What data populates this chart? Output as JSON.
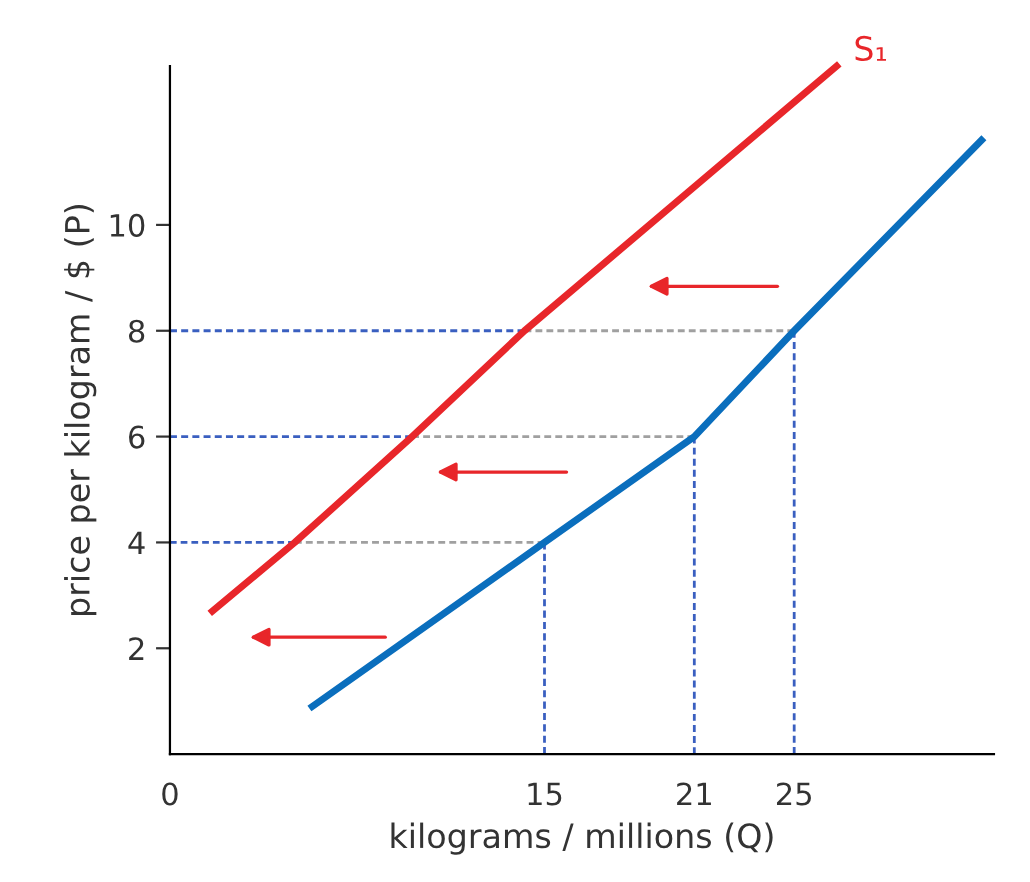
{
  "chart_data": {
    "type": "line",
    "xlabel": "kilograms / millions (Q)",
    "ylabel": "price per kilogram / $ (P)",
    "xlim": [
      0,
      33
    ],
    "ylim": [
      0,
      13
    ],
    "xticks": [
      0,
      15,
      21,
      25
    ],
    "yticks": [
      2,
      4,
      6,
      8,
      10
    ],
    "grid": false,
    "marker": "none",
    "series": [
      {
        "name": "S₁",
        "color": "#e8262a",
        "x": [
          1.7,
          5.0,
          9.7,
          14.2,
          26.7
        ],
        "values": [
          2.7,
          4,
          6,
          8,
          13
        ]
      },
      {
        "color": "#0a6ebd",
        "x": [
          5.7,
          15,
          21,
          25,
          32.5
        ],
        "values": [
          0.9,
          4,
          6,
          8,
          11.6
        ]
      },
      {
        "color": "#3a5fc0",
        "line_style": "dashed",
        "x": [
          0,
          5.0
        ],
        "values": [
          4,
          4
        ]
      },
      {
        "color": "#3a5fc0",
        "line_style": "dashed",
        "x": [
          0,
          9.7
        ],
        "values": [
          6,
          6
        ]
      },
      {
        "color": "#3a5fc0",
        "line_style": "dashed",
        "x": [
          0,
          14.2
        ],
        "values": [
          8,
          8
        ]
      },
      {
        "color": "#a0a0a0",
        "line_style": "dashed",
        "x": [
          5.0,
          15
        ],
        "values": [
          4,
          4
        ]
      },
      {
        "color": "#a0a0a0",
        "line_style": "dashed",
        "x": [
          9.7,
          21
        ],
        "values": [
          6,
          6
        ]
      },
      {
        "color": "#a0a0a0",
        "line_style": "dashed",
        "x": [
          14.2,
          25
        ],
        "values": [
          8,
          8
        ]
      },
      {
        "color": "#3a5fc0",
        "line_style": "dashed",
        "x": [
          15,
          15
        ],
        "values": [
          4,
          0
        ]
      },
      {
        "color": "#3a5fc0",
        "line_style": "dashed",
        "x": [
          21,
          21
        ],
        "values": [
          6,
          0
        ]
      },
      {
        "color": "#3a5fc0",
        "line_style": "dashed",
        "x": [
          25,
          25
        ],
        "values": [
          8,
          0
        ]
      }
    ]
  }
}
